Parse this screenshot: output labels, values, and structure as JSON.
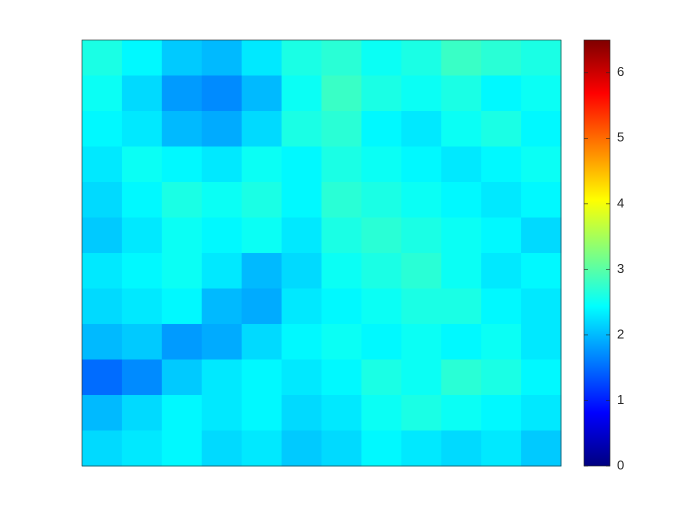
{
  "chart_data": {
    "type": "heatmap",
    "colormap": "jet",
    "clim": [
      0,
      6.5
    ],
    "cticks": [
      0,
      1,
      2,
      3,
      4,
      5,
      6
    ],
    "z": [
      [
        2.6,
        2.4,
        2.1,
        2.0,
        2.3,
        2.6,
        2.7,
        2.5,
        2.6,
        2.8,
        2.7,
        2.6
      ],
      [
        2.5,
        2.2,
        1.8,
        1.7,
        2.0,
        2.5,
        2.8,
        2.6,
        2.5,
        2.6,
        2.4,
        2.5
      ],
      [
        2.4,
        2.3,
        2.0,
        1.9,
        2.2,
        2.6,
        2.7,
        2.4,
        2.3,
        2.5,
        2.6,
        2.4
      ],
      [
        2.3,
        2.5,
        2.4,
        2.3,
        2.5,
        2.4,
        2.6,
        2.5,
        2.4,
        2.3,
        2.4,
        2.5
      ],
      [
        2.2,
        2.4,
        2.6,
        2.5,
        2.6,
        2.4,
        2.7,
        2.6,
        2.5,
        2.4,
        2.3,
        2.4
      ],
      [
        2.1,
        2.3,
        2.5,
        2.4,
        2.5,
        2.3,
        2.6,
        2.7,
        2.6,
        2.5,
        2.4,
        2.2
      ],
      [
        2.3,
        2.4,
        2.5,
        2.3,
        2.0,
        2.2,
        2.5,
        2.6,
        2.7,
        2.5,
        2.3,
        2.4
      ],
      [
        2.2,
        2.3,
        2.4,
        2.0,
        1.9,
        2.3,
        2.4,
        2.5,
        2.6,
        2.6,
        2.4,
        2.3
      ],
      [
        2.0,
        2.1,
        1.8,
        1.9,
        2.2,
        2.4,
        2.5,
        2.4,
        2.5,
        2.4,
        2.5,
        2.3
      ],
      [
        1.5,
        1.7,
        2.1,
        2.3,
        2.4,
        2.3,
        2.4,
        2.6,
        2.5,
        2.7,
        2.6,
        2.4
      ],
      [
        2.0,
        2.2,
        2.4,
        2.3,
        2.4,
        2.2,
        2.3,
        2.5,
        2.6,
        2.5,
        2.4,
        2.3
      ],
      [
        2.2,
        2.3,
        2.4,
        2.2,
        2.3,
        2.1,
        2.2,
        2.4,
        2.3,
        2.2,
        2.3,
        2.1
      ]
    ]
  }
}
